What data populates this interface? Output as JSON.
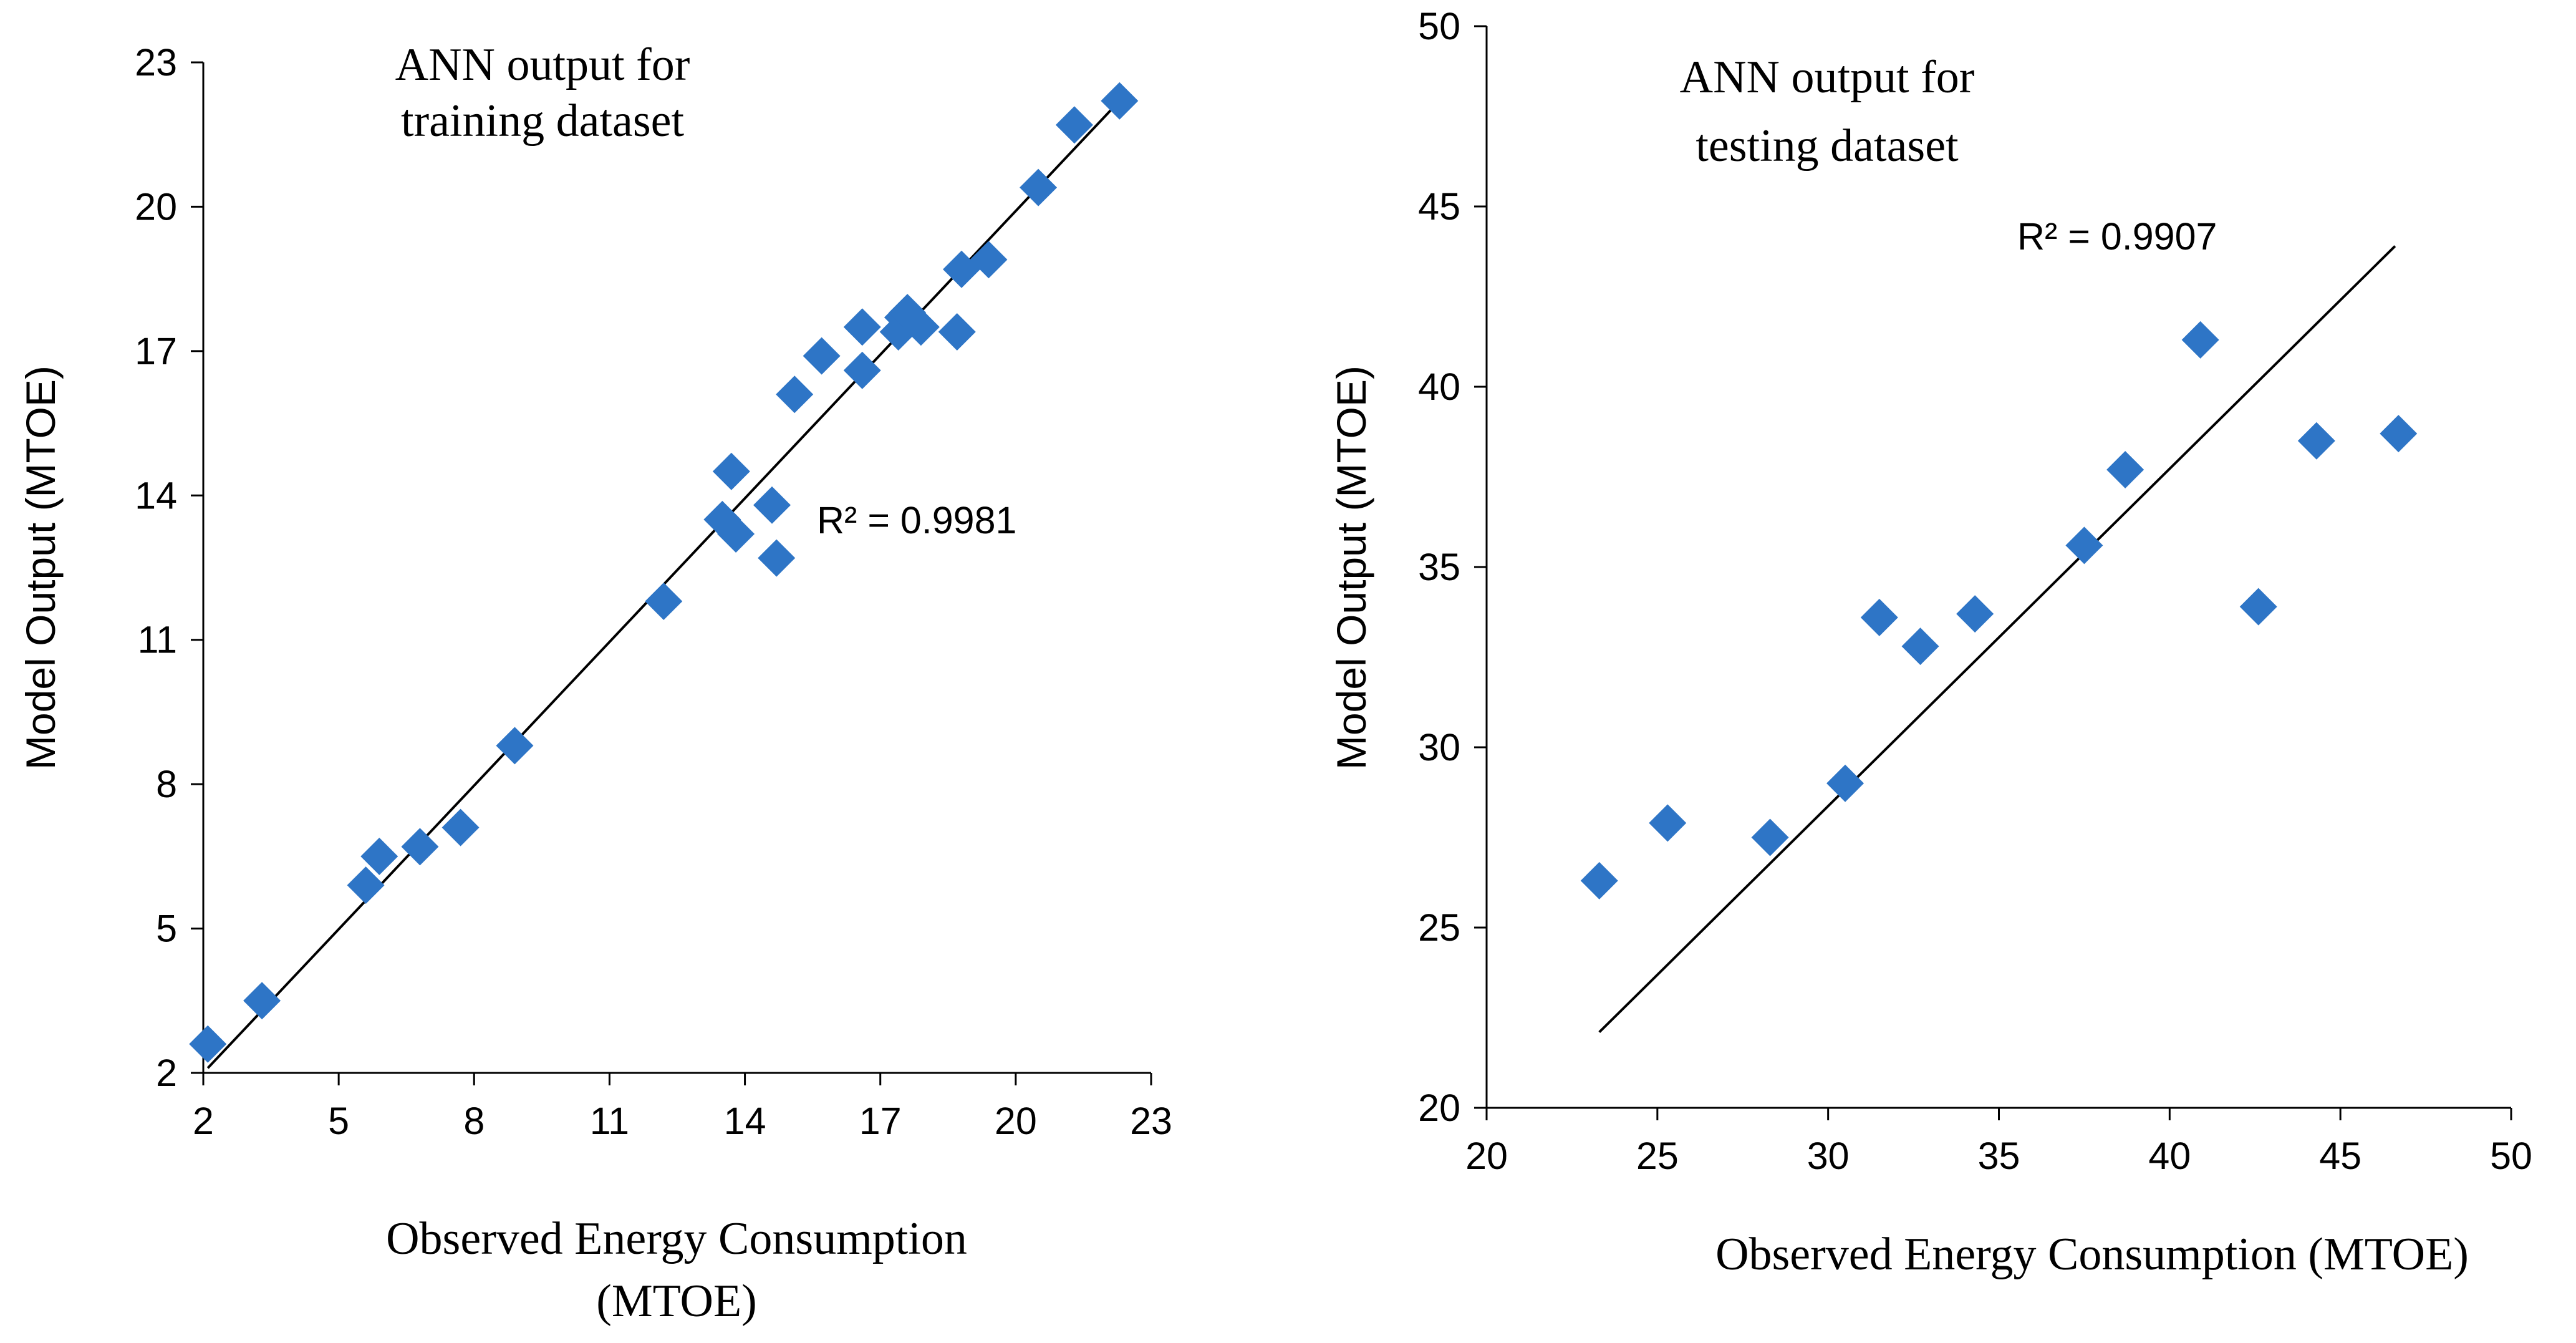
{
  "colors": {
    "marker": "#2E75C6",
    "axis": "#000000",
    "background": "#ffffff"
  },
  "chart_data": [
    {
      "type": "scatter",
      "annotation": [
        "ANN output for",
        "training dataset"
      ],
      "xlabel": [
        "Observed Energy Consumption",
        "(MTOE)"
      ],
      "ylabel": "Model Output (MTOE)",
      "xlim": [
        2,
        23
      ],
      "ylim": [
        2,
        23
      ],
      "xticks": [
        2,
        5,
        8,
        11,
        14,
        17,
        20,
        23
      ],
      "yticks": [
        2,
        5,
        8,
        11,
        14,
        17,
        20,
        23
      ],
      "r2_label": "R² = 0.9981",
      "trendline": {
        "x": [
          2.1,
          22.3
        ],
        "y": [
          2.1,
          22.2
        ]
      },
      "x": [
        2.1,
        3.3,
        5.6,
        5.9,
        6.8,
        7.7,
        8.9,
        12.2,
        13.5,
        13.7,
        13.8,
        14.6,
        14.7,
        15.1,
        15.7,
        16.6,
        16.6,
        17.4,
        17.5,
        17.6,
        17.9,
        18.7,
        18.8,
        19.4,
        20.5,
        21.3,
        22.3
      ],
      "y": [
        2.6,
        3.5,
        5.9,
        6.5,
        6.7,
        7.1,
        8.8,
        11.8,
        13.5,
        14.5,
        13.2,
        13.8,
        12.7,
        16.1,
        16.9,
        16.6,
        17.5,
        17.4,
        17.7,
        17.8,
        17.5,
        17.4,
        18.7,
        18.9,
        20.4,
        21.7,
        22.2
      ]
    },
    {
      "type": "scatter",
      "annotation": [
        "ANN output for",
        "testing dataset"
      ],
      "xlabel": [
        "Observed Energy Consumption (MTOE)"
      ],
      "ylabel": "Model Output (MTOE)",
      "xlim": [
        20,
        50
      ],
      "ylim": [
        20,
        50
      ],
      "xticks": [
        20,
        25,
        30,
        35,
        40,
        45,
        50
      ],
      "yticks": [
        20,
        25,
        30,
        35,
        40,
        45,
        50
      ],
      "r2_label": "R² = 0.9907",
      "trendline": {
        "x": [
          23.3,
          46.6
        ],
        "y": [
          22.1,
          43.9
        ]
      },
      "x": [
        23.3,
        25.3,
        28.3,
        30.5,
        31.5,
        32.7,
        34.3,
        37.5,
        38.7,
        40.9,
        42.6,
        44.3,
        46.7
      ],
      "y": [
        26.3,
        27.9,
        27.5,
        29.0,
        33.6,
        32.8,
        33.7,
        35.6,
        37.7,
        41.3,
        33.9,
        38.5,
        38.7
      ]
    }
  ]
}
